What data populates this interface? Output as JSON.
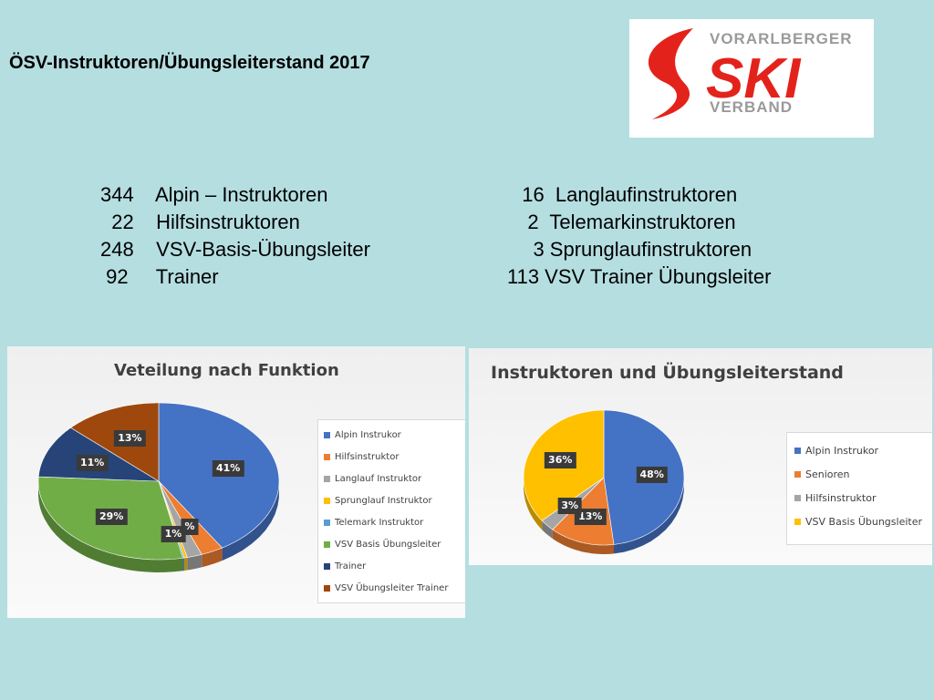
{
  "title": "ÖSV-Instruktoren/Übungsleiterstand 2017",
  "logo": {
    "line1": "VORARLBERGER",
    "line2": "SKI",
    "line3": "VERBAND"
  },
  "stats_left": [
    "344    Alpin – Instruktoren",
    "  22    Hilfsinstruktoren",
    "248    VSV-Basis-Übungsleiter",
    " 92     Trainer"
  ],
  "stats_right": [
    "  16  Langlaufinstruktoren",
    "   2  Telemarkinstruktoren",
    "    3 Sprunglaufinstruktoren",
    "113 VSV Trainer Übungsleiter"
  ],
  "chart_data": [
    {
      "type": "pie",
      "title": "Veteilung nach Funktion",
      "categories": [
        "Alpin Instrukor",
        "Hilfsinstruktor",
        "Langlauf Instruktor",
        "Sprunglauf Instruktor",
        "Telemark Instruktor",
        "VSV Basis Übungsleiter",
        "Trainer",
        "VSV Übungsleiter Trainer"
      ],
      "values": [
        41,
        3,
        2,
        0.4,
        0.2,
        29,
        11,
        13
      ],
      "data_labels": [
        "41%",
        "",
        "",
        "",
        "",
        "29%",
        "11%",
        "13%"
      ],
      "extra_labels": [
        "1%",
        "%"
      ],
      "colors": [
        "#4472c4",
        "#ed7d31",
        "#a5a5a5",
        "#ffc000",
        "#5b9bd5",
        "#70ad47",
        "#264478",
        "#9e480e"
      ],
      "legend": "right"
    },
    {
      "type": "pie",
      "title": "Instruktoren und Übungsleiterstand",
      "categories": [
        "Alpin Instrukor",
        "Senioren",
        "Hilfsinstruktor",
        "VSV Basis Übungsleiter"
      ],
      "values": [
        48,
        13,
        3,
        36
      ],
      "data_labels": [
        "48%",
        "13%",
        "3%",
        "36%"
      ],
      "colors": [
        "#4472c4",
        "#ed7d31",
        "#a5a5a5",
        "#ffc000"
      ],
      "legend": "right"
    }
  ]
}
